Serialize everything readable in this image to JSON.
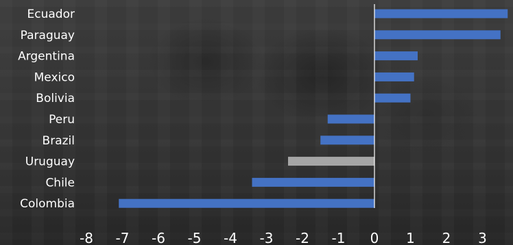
{
  "chart_data": {
    "type": "bar",
    "orientation": "horizontal",
    "categories": [
      "Ecuador",
      "Paraguay",
      "Argentina",
      "Mexico",
      "Bolivia",
      "Peru",
      "Brazil",
      "Uruguay",
      "Chile",
      "Colombia"
    ],
    "values": [
      3.7,
      3.5,
      1.2,
      1.1,
      1.0,
      -1.3,
      -1.5,
      -2.4,
      -3.4,
      -7.1
    ],
    "highlight": "Uruguay",
    "xlim": [
      -8,
      3.7
    ],
    "xticks": [
      -8,
      -7,
      -6,
      -5,
      -4,
      -3,
      -2,
      -1,
      0,
      1,
      2,
      3
    ],
    "title": "",
    "xlabel": "",
    "ylabel": "",
    "grid": false,
    "colors": {
      "bar": "#4472c4",
      "highlight": "#a6a6a6",
      "axis": "#ffffff",
      "text": "#ffffff"
    }
  }
}
